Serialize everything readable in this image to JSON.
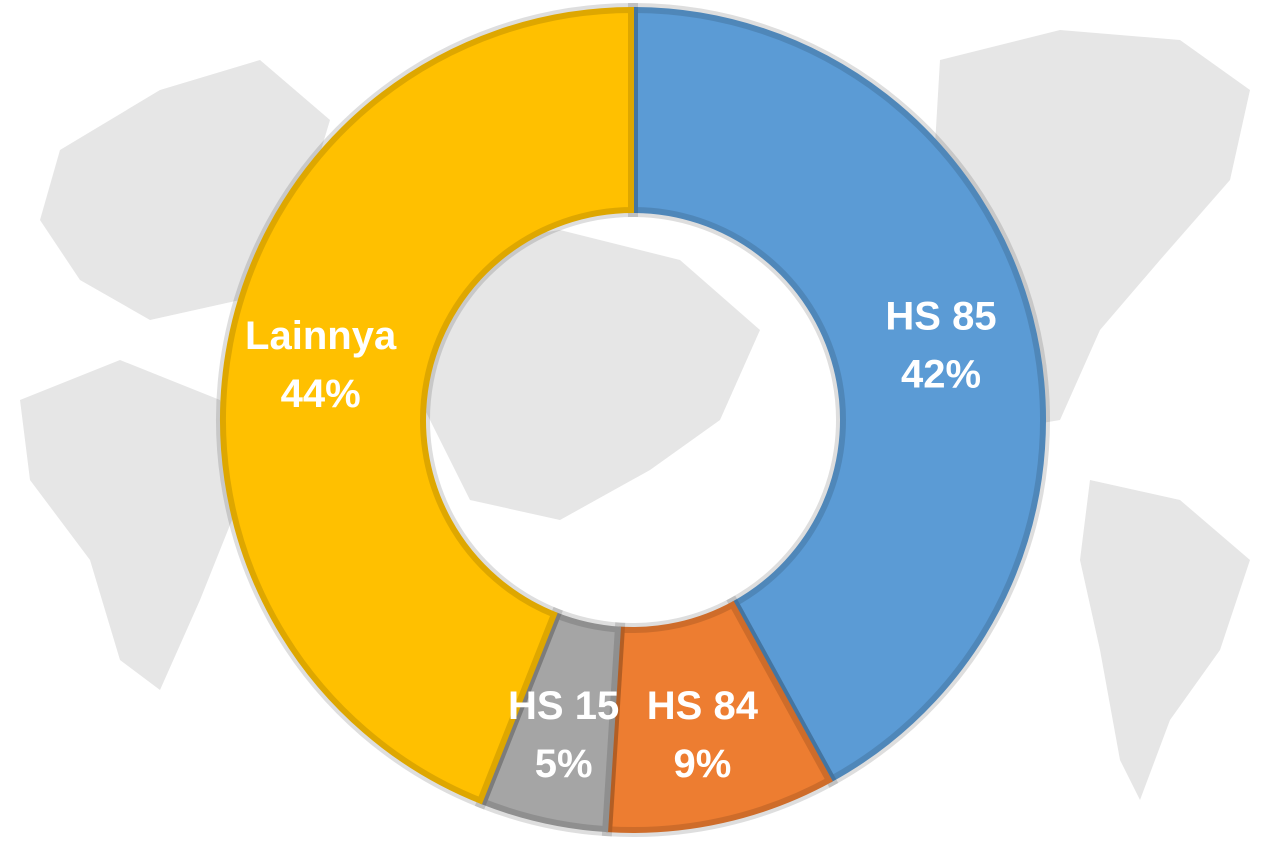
{
  "chart_data": {
    "type": "donut",
    "categories": [
      "HS 85",
      "HS 84",
      "HS 15",
      "Lainnya"
    ],
    "values": [
      42,
      9,
      5,
      44
    ],
    "value_labels": [
      "42%",
      "9%",
      "5%",
      "44%"
    ],
    "colors": [
      "#5b9bd5",
      "#ed7d31",
      "#a5a5a5",
      "#ffc000"
    ]
  }
}
